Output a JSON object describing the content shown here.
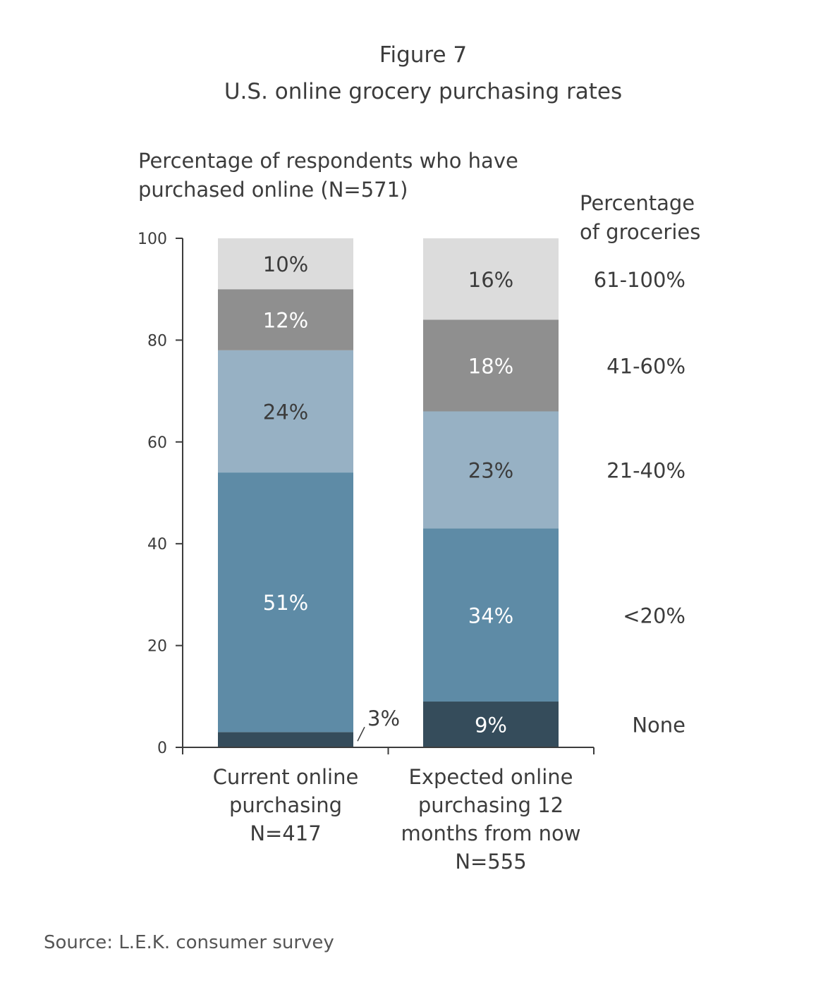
{
  "header": {
    "figure_number": "Figure 7",
    "title": "U.S. online grocery purchasing rates"
  },
  "axis": {
    "ylabel": "Percentage of respondents who have\npurchased online (N=571)"
  },
  "legend": {
    "title": "Percentage\nof groceries"
  },
  "source": "Source: L.E.K. consumer survey",
  "colors": {
    "None": "#354c5b",
    "<20%": "#5e8ba6",
    "21-40%": "#97b1c4",
    "41-60%": "#8f8f8f",
    "61-100%": "#dcdcdc"
  },
  "chart_data": {
    "type": "bar",
    "stacked": true,
    "categories": [
      [
        "Current online",
        "purchasing",
        "N=417"
      ],
      [
        "Expected online",
        "purchasing 12",
        "months from now",
        "N=555"
      ]
    ],
    "series": [
      {
        "name": "None",
        "values": [
          3,
          9
        ],
        "labels": [
          "3%",
          "9%"
        ]
      },
      {
        "name": "<20%",
        "values": [
          51,
          34
        ],
        "labels": [
          "51%",
          "34%"
        ]
      },
      {
        "name": "21-40%",
        "values": [
          24,
          23
        ],
        "labels": [
          "24%",
          "23%"
        ]
      },
      {
        "name": "41-60%",
        "values": [
          12,
          18
        ],
        "labels": [
          "12%",
          "18%"
        ]
      },
      {
        "name": "61-100%",
        "values": [
          10,
          16
        ],
        "labels": [
          "10%",
          "16%"
        ]
      }
    ],
    "ylim": [
      0,
      100
    ],
    "yticks": [
      0,
      20,
      40,
      60,
      80,
      100
    ],
    "legend_placement": "right",
    "grid": false
  }
}
